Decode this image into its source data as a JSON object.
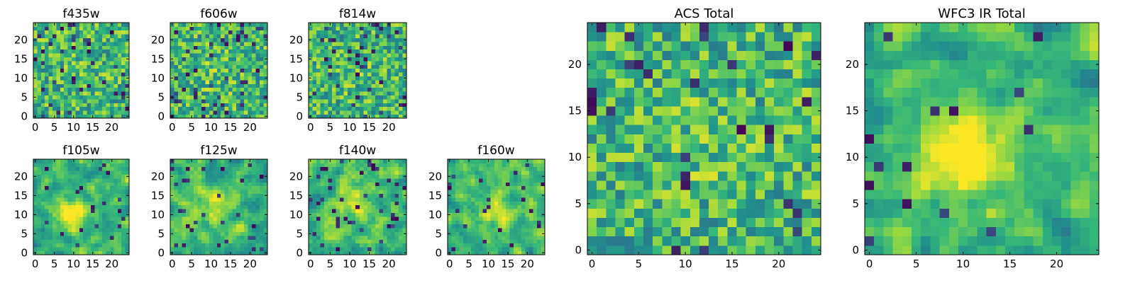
{
  "figure": {
    "colormap": "viridis",
    "colormap_stops": [
      "#440154",
      "#31688e",
      "#21918c",
      "#35b779",
      "#90d743",
      "#fde725"
    ]
  },
  "chart_data": [
    {
      "type": "heatmap",
      "title": "f435w",
      "grid_size": [
        25,
        25
      ],
      "xticks": [
        "0",
        "5",
        "10",
        "15",
        "20"
      ],
      "yticks": [
        "0",
        "5",
        "10",
        "15",
        "20"
      ],
      "xlim": [
        -0.5,
        24.5
      ],
      "ylim": [
        -0.5,
        24.5
      ],
      "grid": false,
      "pattern": "noise",
      "seed": 11,
      "peak": [
        12,
        12
      ],
      "peak_strength": 0.05,
      "dark_fraction": 0.07
    },
    {
      "type": "heatmap",
      "title": "f606w",
      "grid_size": [
        25,
        25
      ],
      "xticks": [
        "0",
        "5",
        "10",
        "15",
        "20"
      ],
      "yticks": [
        "0",
        "5",
        "10",
        "15",
        "20"
      ],
      "xlim": [
        -0.5,
        24.5
      ],
      "ylim": [
        -0.5,
        24.5
      ],
      "grid": false,
      "pattern": "noise",
      "seed": 23,
      "peak": [
        10,
        12
      ],
      "peak_strength": 0.1,
      "dark_fraction": 0.07
    },
    {
      "type": "heatmap",
      "title": "f814w",
      "grid_size": [
        25,
        25
      ],
      "xticks": [
        "0",
        "5",
        "10",
        "15",
        "20"
      ],
      "yticks": [
        "0",
        "5",
        "10",
        "15",
        "20"
      ],
      "xlim": [
        -0.5,
        24.5
      ],
      "ylim": [
        -0.5,
        24.5
      ],
      "grid": false,
      "pattern": "noise",
      "seed": 37,
      "peak": [
        12,
        12
      ],
      "peak_strength": 0.05,
      "dark_fraction": 0.07
    },
    {
      "type": "heatmap",
      "title": "f105w",
      "grid_size": [
        25,
        25
      ],
      "xticks": [
        "0",
        "5",
        "10",
        "15",
        "20"
      ],
      "yticks": [
        "0",
        "5",
        "10",
        "15",
        "20"
      ],
      "xlim": [
        -0.5,
        24.5
      ],
      "ylim": [
        -0.5,
        24.5
      ],
      "grid": false,
      "pattern": "smooth",
      "seed": 41,
      "peak": [
        10,
        10
      ],
      "peak_strength": 0.45,
      "dark_fraction": 0.03
    },
    {
      "type": "heatmap",
      "title": "f125w",
      "grid_size": [
        25,
        25
      ],
      "xticks": [
        "0",
        "5",
        "10",
        "15",
        "20"
      ],
      "yticks": [
        "0",
        "5",
        "10",
        "15",
        "20"
      ],
      "xlim": [
        -0.5,
        24.5
      ],
      "ylim": [
        -0.5,
        24.5
      ],
      "grid": false,
      "pattern": "smooth",
      "seed": 53,
      "peak": [
        11,
        12
      ],
      "peak_strength": 0.25,
      "dark_fraction": 0.06
    },
    {
      "type": "heatmap",
      "title": "f140w",
      "grid_size": [
        25,
        25
      ],
      "xticks": [
        "0",
        "5",
        "10",
        "15",
        "20"
      ],
      "yticks": [
        "0",
        "5",
        "10",
        "15",
        "20"
      ],
      "xlim": [
        -0.5,
        24.5
      ],
      "ylim": [
        -0.5,
        24.5
      ],
      "grid": false,
      "pattern": "smooth",
      "seed": 67,
      "peak": [
        10,
        14
      ],
      "peak_strength": 0.3,
      "dark_fraction": 0.05
    },
    {
      "type": "heatmap",
      "title": "f160w",
      "grid_size": [
        25,
        25
      ],
      "xticks": [
        "0",
        "5",
        "10",
        "15",
        "20"
      ],
      "yticks": [
        "0",
        "5",
        "10",
        "15",
        "20"
      ],
      "xlim": [
        -0.5,
        24.5
      ],
      "ylim": [
        -0.5,
        24.5
      ],
      "grid": false,
      "pattern": "smooth",
      "seed": 79,
      "peak": [
        12,
        11
      ],
      "peak_strength": 0.3,
      "dark_fraction": 0.05
    },
    {
      "type": "heatmap",
      "title": "ACS Total",
      "grid_size": [
        25,
        25
      ],
      "xticks": [
        "0",
        "5",
        "10",
        "15",
        "20"
      ],
      "yticks": [
        "0",
        "5",
        "10",
        "15",
        "20"
      ],
      "xlim": [
        -0.5,
        24.5
      ],
      "ylim": [
        -0.5,
        24.5
      ],
      "grid": false,
      "pattern": "noise",
      "seed": 97,
      "peak": [
        12,
        12
      ],
      "peak_strength": 0.08,
      "dark_fraction": 0.05
    },
    {
      "type": "heatmap",
      "title": "WFC3 IR Total",
      "grid_size": [
        25,
        25
      ],
      "xticks": [
        "0",
        "5",
        "10",
        "15",
        "20"
      ],
      "yticks": [
        "0",
        "5",
        "10",
        "15",
        "20"
      ],
      "xlim": [
        -0.5,
        24.5
      ],
      "ylim": [
        -0.5,
        24.5
      ],
      "grid": false,
      "pattern": "smooth",
      "seed": 113,
      "peak": [
        10,
        10
      ],
      "peak_strength": 0.55,
      "dark_fraction": 0.03
    }
  ]
}
